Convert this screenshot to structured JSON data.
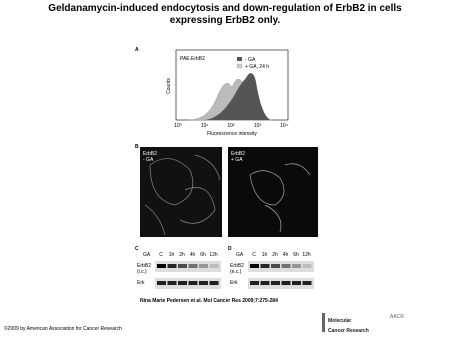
{
  "header": {
    "title": "Geldanamycin-induced endocytosis and down-regulation of ErbB2 in cells expressing ErbB2 only."
  },
  "panel_a": {
    "label": "A",
    "sample": "PAE.ErbB2",
    "legend": [
      "- GA",
      "+ GA, 24 h"
    ],
    "y_label": "Counts",
    "x_label": "Fluorescence intensity",
    "x_ticks": [
      "10⁰",
      "10¹",
      "10²",
      "10³",
      "10⁴"
    ]
  },
  "panel_b": {
    "label": "B",
    "images": [
      [
        "ErbB2",
        "- GA"
      ],
      [
        "ErbB2",
        "+ GA"
      ]
    ]
  },
  "panel_c": {
    "label": "C",
    "treatment": "GA",
    "lanes": [
      "C",
      "1h",
      "2h",
      "4h",
      "6h",
      "12h"
    ],
    "rows": [
      [
        "ErbB2",
        "(i.c.)"
      ],
      [
        "Erk"
      ]
    ]
  },
  "panel_d": {
    "label": "D",
    "treatment": "GA",
    "lanes": [
      "C",
      "1h",
      "2h",
      "4h",
      "6h",
      "12h"
    ],
    "rows": [
      [
        "ErbB2",
        "(e.c.)"
      ],
      [
        "Erk"
      ]
    ]
  },
  "citation": "Nina Marie Pedersen et al. Mol Cancer Res 2009;7:275-284",
  "footer": {
    "copyright": "©2009 by American Association for Cancer Research"
  },
  "logo": {
    "org": "AACR",
    "name": [
      "Molecular",
      "Cancer Research"
    ]
  }
}
